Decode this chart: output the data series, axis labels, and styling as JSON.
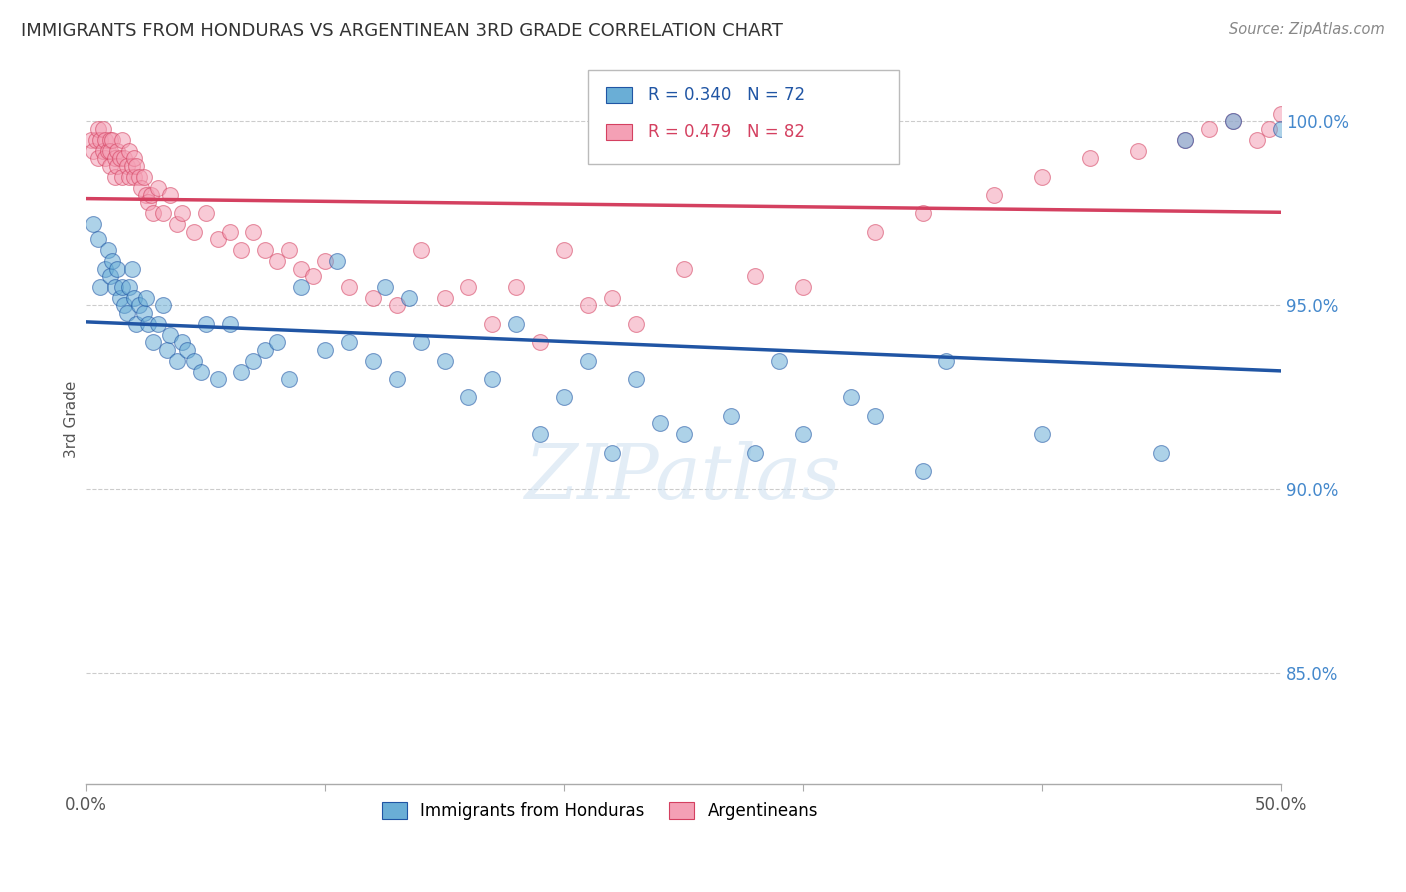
{
  "title": "IMMIGRANTS FROM HONDURAS VS ARGENTINEAN 3RD GRADE CORRELATION CHART",
  "source": "Source: ZipAtlas.com",
  "ylabel": "3rd Grade",
  "watermark": "ZIPatlas",
  "blue_label": "Immigrants from Honduras",
  "pink_label": "Argentineans",
  "blue_R": 0.34,
  "blue_N": 72,
  "pink_R": 0.479,
  "pink_N": 82,
  "x_min": 0.0,
  "x_max": 50.0,
  "y_min": 82.0,
  "y_max": 101.8,
  "yticks": [
    85.0,
    90.0,
    95.0,
    100.0
  ],
  "ytick_labels": [
    "85.0%",
    "90.0%",
    "95.0%",
    "100.0%"
  ],
  "xticks": [
    0.0,
    10.0,
    20.0,
    30.0,
    40.0,
    50.0
  ],
  "xtick_labels": [
    "0.0%",
    "",
    "",
    "",
    "",
    "50.0%"
  ],
  "blue_color": "#6aaed6",
  "pink_color": "#f4a0b5",
  "blue_line_color": "#2055a4",
  "pink_line_color": "#d44060",
  "grid_color": "#cccccc",
  "title_color": "#333333",
  "source_color": "#888888",
  "right_label_color": "#4488cc",
  "blue_scatter_x": [
    0.3,
    0.5,
    0.6,
    0.8,
    0.9,
    1.0,
    1.1,
    1.2,
    1.3,
    1.4,
    1.5,
    1.6,
    1.7,
    1.8,
    1.9,
    2.0,
    2.1,
    2.2,
    2.4,
    2.5,
    2.6,
    2.8,
    3.0,
    3.2,
    3.4,
    3.5,
    3.8,
    4.0,
    4.2,
    4.5,
    4.8,
    5.0,
    5.5,
    6.0,
    6.5,
    7.0,
    7.5,
    8.0,
    8.5,
    9.0,
    10.0,
    10.5,
    11.0,
    12.0,
    12.5,
    13.0,
    13.5,
    14.0,
    15.0,
    16.0,
    17.0,
    18.0,
    19.0,
    20.0,
    21.0,
    22.0,
    23.0,
    24.0,
    25.0,
    27.0,
    28.0,
    29.0,
    30.0,
    32.0,
    33.0,
    35.0,
    36.0,
    40.0,
    45.0,
    46.0,
    48.0,
    50.0
  ],
  "blue_scatter_y": [
    97.2,
    96.8,
    95.5,
    96.0,
    96.5,
    95.8,
    96.2,
    95.5,
    96.0,
    95.2,
    95.5,
    95.0,
    94.8,
    95.5,
    96.0,
    95.2,
    94.5,
    95.0,
    94.8,
    95.2,
    94.5,
    94.0,
    94.5,
    95.0,
    93.8,
    94.2,
    93.5,
    94.0,
    93.8,
    93.5,
    93.2,
    94.5,
    93.0,
    94.5,
    93.2,
    93.5,
    93.8,
    94.0,
    93.0,
    95.5,
    93.8,
    96.2,
    94.0,
    93.5,
    95.5,
    93.0,
    95.2,
    94.0,
    93.5,
    92.5,
    93.0,
    94.5,
    91.5,
    92.5,
    93.5,
    91.0,
    93.0,
    91.8,
    91.5,
    92.0,
    91.0,
    93.5,
    91.5,
    92.5,
    92.0,
    90.5,
    93.5,
    91.5,
    91.0,
    99.5,
    100.0,
    99.8
  ],
  "pink_scatter_x": [
    0.2,
    0.3,
    0.4,
    0.5,
    0.5,
    0.6,
    0.7,
    0.7,
    0.8,
    0.8,
    0.9,
    1.0,
    1.0,
    1.0,
    1.1,
    1.2,
    1.2,
    1.3,
    1.3,
    1.4,
    1.5,
    1.5,
    1.6,
    1.7,
    1.8,
    1.8,
    1.9,
    2.0,
    2.0,
    2.1,
    2.2,
    2.3,
    2.4,
    2.5,
    2.6,
    2.7,
    2.8,
    3.0,
    3.2,
    3.5,
    3.8,
    4.0,
    4.5,
    5.0,
    5.5,
    6.0,
    6.5,
    7.0,
    7.5,
    8.0,
    8.5,
    9.0,
    9.5,
    10.0,
    11.0,
    12.0,
    13.0,
    14.0,
    15.0,
    16.0,
    17.0,
    18.0,
    19.0,
    20.0,
    21.0,
    22.0,
    23.0,
    25.0,
    28.0,
    30.0,
    33.0,
    35.0,
    38.0,
    40.0,
    42.0,
    44.0,
    46.0,
    47.0,
    48.0,
    49.0,
    49.5,
    50.0
  ],
  "pink_scatter_y": [
    99.5,
    99.2,
    99.5,
    99.8,
    99.0,
    99.5,
    99.8,
    99.2,
    99.5,
    99.0,
    99.2,
    99.5,
    98.8,
    99.2,
    99.5,
    99.0,
    98.5,
    99.2,
    98.8,
    99.0,
    99.5,
    98.5,
    99.0,
    98.8,
    99.2,
    98.5,
    98.8,
    99.0,
    98.5,
    98.8,
    98.5,
    98.2,
    98.5,
    98.0,
    97.8,
    98.0,
    97.5,
    98.2,
    97.5,
    98.0,
    97.2,
    97.5,
    97.0,
    97.5,
    96.8,
    97.0,
    96.5,
    97.0,
    96.5,
    96.2,
    96.5,
    96.0,
    95.8,
    96.2,
    95.5,
    95.2,
    95.0,
    96.5,
    95.2,
    95.5,
    94.5,
    95.5,
    94.0,
    96.5,
    95.0,
    95.2,
    94.5,
    96.0,
    95.8,
    95.5,
    97.0,
    97.5,
    98.0,
    98.5,
    99.0,
    99.2,
    99.5,
    99.8,
    100.0,
    99.5,
    99.8,
    100.2
  ]
}
